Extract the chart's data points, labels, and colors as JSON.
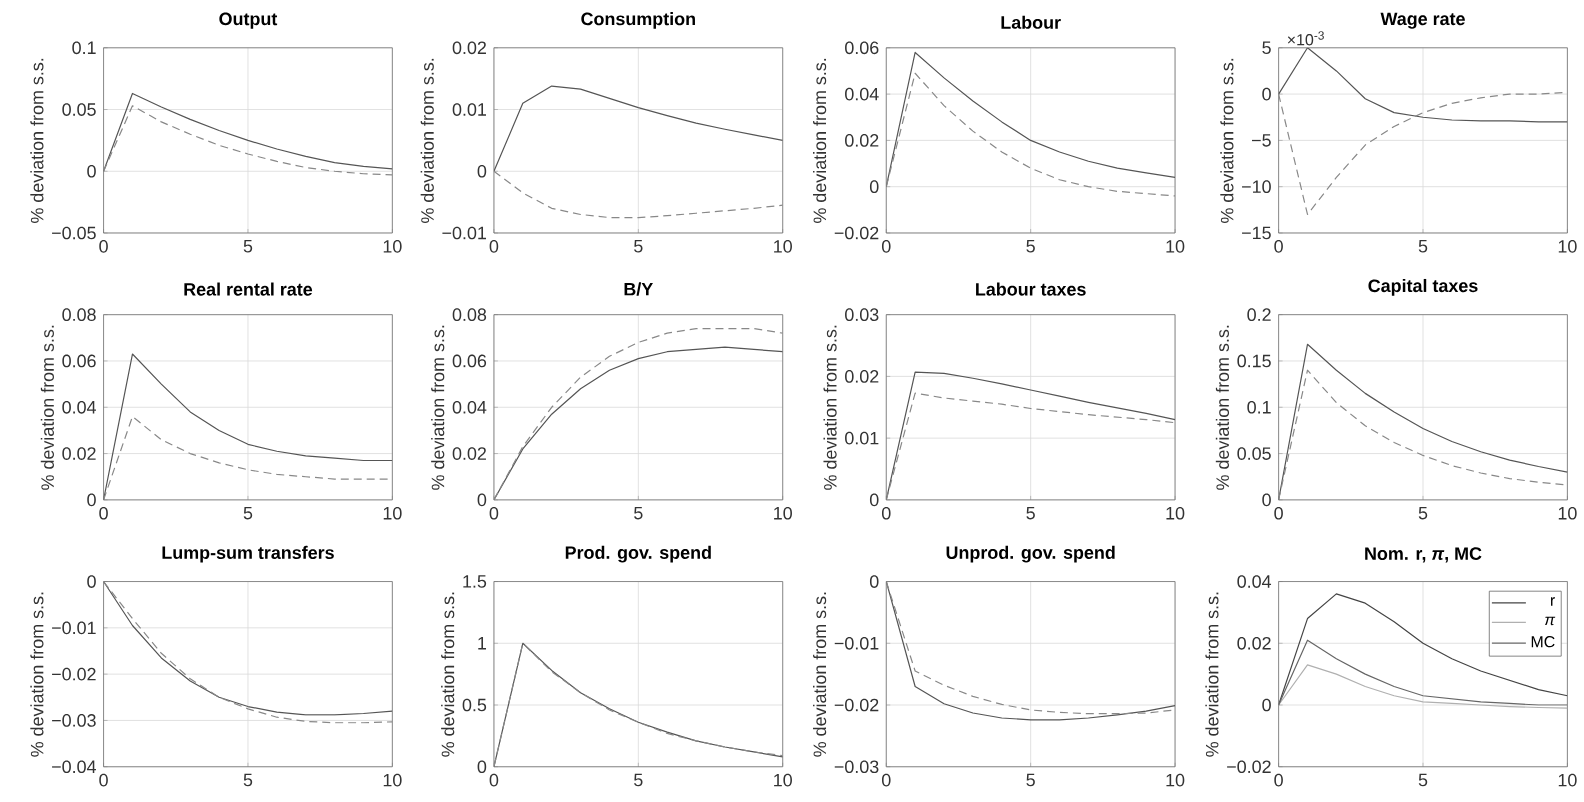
{
  "chart_data": [
    {
      "type": "line",
      "title": "Output",
      "ylabel": "% deviation from s.s.",
      "x": [
        0,
        1,
        2,
        3,
        4,
        5,
        6,
        7,
        8,
        9,
        10
      ],
      "xlim": [
        0,
        10
      ],
      "xticks": [
        0,
        5,
        10
      ],
      "ylim": [
        -0.05,
        0.1
      ],
      "yticks": [
        {
          "value": -0.05,
          "label": "−0.05"
        },
        0,
        0.05,
        0.1
      ],
      "grid": true,
      "series": [
        {
          "color": "#555555",
          "line_style": "solid",
          "values": [
            0,
            0.063,
            0.052,
            0.042,
            0.033,
            0.025,
            0.018,
            0.012,
            0.007,
            0.004,
            0.002
          ]
        },
        {
          "color": "#888888",
          "line_style": "dashed",
          "values": [
            0,
            0.053,
            0.04,
            0.03,
            0.021,
            0.014,
            0.008,
            0.003,
            0,
            -0.002,
            -0.003
          ]
        }
      ]
    },
    {
      "type": "line",
      "title": "Consumption",
      "ylabel": "% deviation from s.s.",
      "x": [
        0,
        1,
        2,
        3,
        4,
        5,
        6,
        7,
        8,
        9,
        10
      ],
      "xlim": [
        0,
        10
      ],
      "xticks": [
        0,
        5,
        10
      ],
      "ylim": [
        -0.01,
        0.02
      ],
      "yticks": [
        {
          "value": -0.01,
          "label": "−0.01"
        },
        0,
        0.01,
        0.02
      ],
      "grid": true,
      "series": [
        {
          "color": "#555555",
          "line_style": "solid",
          "values": [
            0,
            0.011,
            0.0138,
            0.0133,
            0.0118,
            0.0103,
            0.009,
            0.0078,
            0.0068,
            0.0059,
            0.005
          ]
        },
        {
          "color": "#888888",
          "line_style": "dashed",
          "values": [
            0,
            -0.0035,
            -0.006,
            -0.007,
            -0.0075,
            -0.0075,
            -0.0072,
            -0.0068,
            -0.0064,
            -0.006,
            -0.0055
          ]
        }
      ]
    },
    {
      "type": "line",
      "title": "Labour",
      "ylabel": "% deviation from s.s.",
      "x": [
        0,
        1,
        2,
        3,
        4,
        5,
        6,
        7,
        8,
        9,
        10
      ],
      "xlim": [
        0,
        10
      ],
      "xticks": [
        0,
        5,
        10
      ],
      "ylim": [
        -0.02,
        0.06
      ],
      "yticks": [
        {
          "value": -0.02,
          "label": "−0.02"
        },
        0,
        0.02,
        0.04,
        0.06
      ],
      "grid": true,
      "series": [
        {
          "color": "#555555",
          "line_style": "solid",
          "values": [
            0,
            0.058,
            0.047,
            0.037,
            0.028,
            0.02,
            0.015,
            0.011,
            0.008,
            0.006,
            0.004
          ]
        },
        {
          "color": "#888888",
          "line_style": "dashed",
          "values": [
            0,
            0.049,
            0.035,
            0.024,
            0.015,
            0.008,
            0.003,
            0,
            -0.002,
            -0.003,
            -0.004
          ]
        }
      ]
    },
    {
      "type": "line",
      "title": "Wage rate",
      "ylabel": "% deviation from s.s.",
      "annotations": [
        "×10$^{-3}$"
      ],
      "x": [
        0,
        1,
        2,
        3,
        4,
        5,
        6,
        7,
        8,
        9,
        10
      ],
      "xlim": [
        0,
        10
      ],
      "xticks": [
        0,
        5,
        10
      ],
      "ylim": [
        -15,
        5
      ],
      "yticks": [
        {
          "value": -15,
          "label": "−15"
        },
        {
          "value": -10,
          "label": "−10"
        },
        {
          "value": -5,
          "label": "−5"
        },
        0,
        5
      ],
      "grid": true,
      "series": [
        {
          "color": "#555555",
          "line_style": "solid",
          "values": [
            0,
            5,
            2.5,
            -0.5,
            -2,
            -2.5,
            -2.8,
            -2.9,
            -2.9,
            -3,
            -3
          ]
        },
        {
          "color": "#888888",
          "line_style": "dashed",
          "values": [
            0,
            -13,
            -9,
            -5.5,
            -3.5,
            -2,
            -1,
            -0.4,
            0,
            0,
            0.2
          ]
        }
      ]
    },
    {
      "type": "line",
      "title": "Real rental rate",
      "ylabel": "% deviation from s.s.",
      "x": [
        0,
        1,
        2,
        3,
        4,
        5,
        6,
        7,
        8,
        9,
        10
      ],
      "xlim": [
        0,
        10
      ],
      "xticks": [
        0,
        5,
        10
      ],
      "ylim": [
        0,
        0.08
      ],
      "yticks": [
        0,
        0.02,
        0.04,
        0.06,
        0.08
      ],
      "grid": true,
      "series": [
        {
          "color": "#555555",
          "line_style": "solid",
          "values": [
            0,
            0.063,
            0.05,
            0.038,
            0.03,
            0.024,
            0.021,
            0.019,
            0.018,
            0.017,
            0.017
          ]
        },
        {
          "color": "#888888",
          "line_style": "dashed",
          "values": [
            0,
            0.036,
            0.026,
            0.02,
            0.016,
            0.013,
            0.011,
            0.01,
            0.009,
            0.009,
            0.009
          ]
        }
      ]
    },
    {
      "type": "line",
      "title": "B/Y",
      "ylabel": "% deviation from s.s.",
      "x": [
        0,
        1,
        2,
        3,
        4,
        5,
        6,
        7,
        8,
        9,
        10
      ],
      "xlim": [
        0,
        10
      ],
      "xticks": [
        0,
        5,
        10
      ],
      "ylim": [
        0,
        0.08
      ],
      "yticks": [
        0,
        0.02,
        0.04,
        0.06,
        0.08
      ],
      "grid": true,
      "series": [
        {
          "color": "#555555",
          "line_style": "solid",
          "values": [
            0,
            0.022,
            0.037,
            0.048,
            0.056,
            0.061,
            0.064,
            0.065,
            0.066,
            0.065,
            0.064
          ]
        },
        {
          "color": "#888888",
          "line_style": "dashed",
          "values": [
            0,
            0.023,
            0.04,
            0.053,
            0.062,
            0.068,
            0.072,
            0.074,
            0.074,
            0.074,
            0.072
          ]
        }
      ]
    },
    {
      "type": "line",
      "title": "Labour taxes",
      "ylabel": "% deviation from s.s.",
      "x": [
        0,
        1,
        2,
        3,
        4,
        5,
        6,
        7,
        8,
        9,
        10
      ],
      "xlim": [
        0,
        10
      ],
      "xticks": [
        0,
        5,
        10
      ],
      "ylim": [
        0,
        0.03
      ],
      "yticks": [
        0,
        0.01,
        0.02,
        0.03
      ],
      "grid": true,
      "series": [
        {
          "color": "#555555",
          "line_style": "solid",
          "values": [
            0,
            0.0207,
            0.0205,
            0.0197,
            0.0188,
            0.0178,
            0.0168,
            0.0158,
            0.0149,
            0.014,
            0.013
          ]
        },
        {
          "color": "#888888",
          "line_style": "dashed",
          "values": [
            0,
            0.0173,
            0.0165,
            0.016,
            0.0155,
            0.0148,
            0.0143,
            0.0138,
            0.0134,
            0.013,
            0.0125
          ]
        }
      ]
    },
    {
      "type": "line",
      "title": "Capital taxes",
      "ylabel": "% deviation from s.s.",
      "x": [
        0,
        1,
        2,
        3,
        4,
        5,
        6,
        7,
        8,
        9,
        10
      ],
      "xlim": [
        0,
        10
      ],
      "xticks": [
        0,
        5,
        10
      ],
      "ylim": [
        0,
        0.2
      ],
      "yticks": [
        0,
        0.05,
        0.1,
        0.15,
        0.2
      ],
      "grid": true,
      "series": [
        {
          "color": "#555555",
          "line_style": "solid",
          "values": [
            0,
            0.168,
            0.14,
            0.115,
            0.095,
            0.077,
            0.063,
            0.052,
            0.043,
            0.036,
            0.03
          ]
        },
        {
          "color": "#888888",
          "line_style": "dashed",
          "values": [
            0,
            0.14,
            0.105,
            0.08,
            0.062,
            0.048,
            0.037,
            0.029,
            0.023,
            0.019,
            0.016
          ]
        }
      ]
    },
    {
      "type": "line",
      "title": "Lump-sum transfers",
      "ylabel": "% deviation from s.s.",
      "x": [
        0,
        1,
        2,
        3,
        4,
        5,
        6,
        7,
        8,
        9,
        10
      ],
      "xlim": [
        0,
        10
      ],
      "xticks": [
        0,
        5,
        10
      ],
      "ylim": [
        -0.04,
        0
      ],
      "yticks": [
        {
          "value": -0.04,
          "label": "−0.04"
        },
        {
          "value": -0.03,
          "label": "−0.03"
        },
        {
          "value": -0.02,
          "label": "−0.02"
        },
        {
          "value": -0.01,
          "label": "−0.01"
        },
        0
      ],
      "grid": true,
      "series": [
        {
          "color": "#555555",
          "line_style": "solid",
          "values": [
            0,
            -0.0095,
            -0.0165,
            -0.0215,
            -0.025,
            -0.027,
            -0.0282,
            -0.0288,
            -0.0288,
            -0.0285,
            -0.028
          ]
        },
        {
          "color": "#888888",
          "line_style": "dashed",
          "values": [
            0,
            -0.008,
            -0.0155,
            -0.021,
            -0.025,
            -0.0275,
            -0.0293,
            -0.0302,
            -0.0305,
            -0.0305,
            -0.0303
          ]
        }
      ]
    },
    {
      "type": "line",
      "title": "Prod. gov. spend",
      "ylabel": "% deviation from s.s.",
      "x": [
        0,
        1,
        2,
        3,
        4,
        5,
        6,
        7,
        8,
        9,
        10
      ],
      "xlim": [
        0,
        10
      ],
      "xticks": [
        0,
        5,
        10
      ],
      "ylim": [
        0,
        1.5
      ],
      "yticks": [
        0,
        0.5,
        1,
        1.5
      ],
      "grid": true,
      "series": [
        {
          "color": "#555555",
          "line_style": "solid",
          "values": [
            0,
            1.0,
            0.78,
            0.6,
            0.47,
            0.36,
            0.28,
            0.21,
            0.16,
            0.12,
            0.08
          ]
        },
        {
          "color": "#888888",
          "line_style": "dashed",
          "values": [
            0,
            1.0,
            0.77,
            0.6,
            0.46,
            0.36,
            0.27,
            0.21,
            0.16,
            0.12,
            0.09
          ]
        }
      ]
    },
    {
      "type": "line",
      "title": "Unprod. gov. spend",
      "ylabel": "% deviation from s.s.",
      "x": [
        0,
        1,
        2,
        3,
        4,
        5,
        6,
        7,
        8,
        9,
        10
      ],
      "xlim": [
        0,
        10
      ],
      "xticks": [
        0,
        5,
        10
      ],
      "ylim": [
        -0.03,
        0
      ],
      "yticks": [
        {
          "value": -0.03,
          "label": "−0.03"
        },
        {
          "value": -0.02,
          "label": "−0.02"
        },
        {
          "value": -0.01,
          "label": "−0.01"
        },
        0
      ],
      "grid": true,
      "series": [
        {
          "color": "#555555",
          "line_style": "solid",
          "values": [
            0,
            -0.017,
            -0.0198,
            -0.0213,
            -0.0221,
            -0.0224,
            -0.0224,
            -0.0221,
            -0.0216,
            -0.021,
            -0.0201
          ]
        },
        {
          "color": "#888888",
          "line_style": "dashed",
          "values": [
            0,
            -0.0145,
            -0.0168,
            -0.0186,
            -0.0199,
            -0.0208,
            -0.0212,
            -0.0214,
            -0.0214,
            -0.0213,
            -0.0208
          ]
        }
      ]
    },
    {
      "type": "line",
      "title": "Nom. r, *π*, MC",
      "ylabel": "% deviation from s.s.",
      "x": [
        0,
        1,
        2,
        3,
        4,
        5,
        6,
        7,
        8,
        9,
        10
      ],
      "xlim": [
        0,
        10
      ],
      "xticks": [
        0,
        5,
        10
      ],
      "ylim": [
        -0.02,
        0.04
      ],
      "yticks": [
        {
          "value": -0.02,
          "label": "−0.02"
        },
        0,
        0.02,
        0.04
      ],
      "grid": true,
      "legend": "top right",
      "series": [
        {
          "name": "r",
          "color": "#444444",
          "line_style": "solid",
          "values": [
            0,
            0.028,
            0.036,
            0.033,
            0.027,
            0.02,
            0.015,
            0.011,
            0.008,
            0.005,
            0.003
          ]
        },
        {
          "name": "*π*",
          "color": "#b0b0b0",
          "line_style": "solid",
          "values": [
            0,
            0.013,
            0.01,
            0.006,
            0.003,
            0.001,
            0.0005,
            0,
            -0.0005,
            -0.0008,
            -0.001
          ]
        },
        {
          "name": "MC",
          "color": "#666666",
          "line_style": "solid",
          "values": [
            0,
            0.021,
            0.015,
            0.01,
            0.006,
            0.003,
            0.002,
            0.001,
            0.0005,
            0,
            0
          ]
        }
      ]
    }
  ]
}
